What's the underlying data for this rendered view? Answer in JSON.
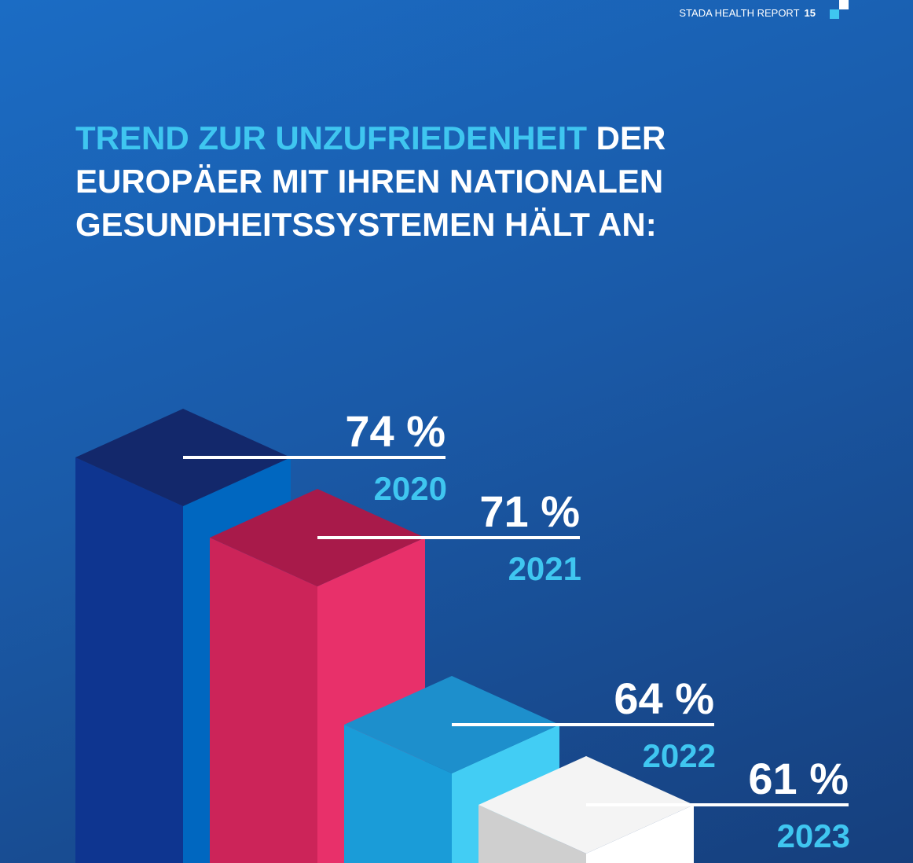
{
  "header": {
    "report": "STADA HEALTH REPORT",
    "page": "15"
  },
  "chart_data": {
    "type": "bar3d",
    "title": {
      "highlight": "TREND ZUR UNZUFRIEDENHEIT",
      "rest": "DER EUROPÄER MIT IHREN NATIONALEN GESUNDHEITSSYSTEMEN HÄLT AN:"
    },
    "categories": [
      "2020",
      "2021",
      "2022",
      "2023"
    ],
    "values": [
      74,
      71,
      64,
      61
    ],
    "value_labels": [
      "74 %",
      "71 %",
      "64 %",
      "61 %"
    ],
    "colors": [
      [
        "#13286b",
        "#0e3590",
        "#0067c0"
      ],
      [
        "#a81a4a",
        "#cc2459",
        "#e8306a"
      ],
      [
        "#1d8fcc",
        "#1a9cd8",
        "#42cdf4"
      ],
      [
        "#f4f4f4",
        "#cfcfcf",
        "#ffffff"
      ]
    ]
  }
}
